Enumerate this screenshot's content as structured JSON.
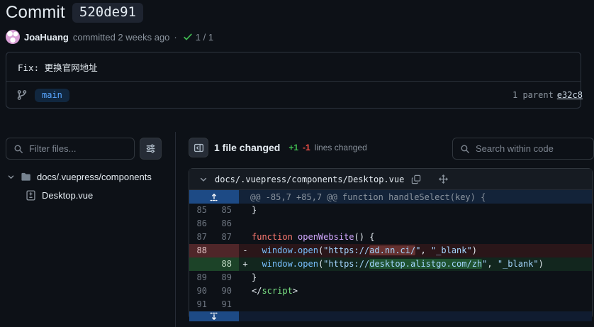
{
  "header": {
    "title": "Commit",
    "hash": "520de91",
    "author": "JoaHuang",
    "committed": "committed 2 weeks ago",
    "dot": "·",
    "checks": "1 / 1"
  },
  "commit": {
    "message": "Fix: 更换官网地址",
    "branch": "main",
    "parent_label": "1 parent",
    "parent_hash": "e32c8"
  },
  "sidebar": {
    "filter_placeholder": "Filter files...",
    "folder": "docs/.vuepress/components",
    "file": "Desktop.vue"
  },
  "toolbar": {
    "files_changed": "1 file changed",
    "additions": "+1",
    "deletions": "-1",
    "lines_label": "lines changed",
    "search_placeholder": "Search within code"
  },
  "diff": {
    "file_path": "docs/.vuepress/components/Desktop.vue",
    "hunk": "@@ -85,7 +85,7 @@ function handleSelect(key) {",
    "rows": [
      {
        "type": "context",
        "old": "85",
        "new": "85",
        "marker": "",
        "segments": [
          {
            "t": "}",
            "c": "plain"
          }
        ]
      },
      {
        "type": "context",
        "old": "86",
        "new": "86",
        "marker": "",
        "segments": []
      },
      {
        "type": "context",
        "old": "87",
        "new": "87",
        "marker": "",
        "segments": [
          {
            "t": "function",
            "c": "keyword"
          },
          {
            "t": " ",
            "c": "plain"
          },
          {
            "t": "openWebsite",
            "c": "func"
          },
          {
            "t": "() {",
            "c": "plain"
          }
        ]
      },
      {
        "type": "del",
        "old": "88",
        "new": "",
        "marker": "-",
        "segments": [
          {
            "t": "  ",
            "c": "plain"
          },
          {
            "t": "window.open",
            "c": "builtin"
          },
          {
            "t": "(",
            "c": "plain"
          },
          {
            "t": "\"https://",
            "c": "string"
          },
          {
            "t": "ad.nn.ci/",
            "c": "string",
            "hl": true
          },
          {
            "t": "\"",
            "c": "string"
          },
          {
            "t": ", ",
            "c": "plain"
          },
          {
            "t": "\"_blank\"",
            "c": "string"
          },
          {
            "t": ")",
            "c": "plain"
          }
        ]
      },
      {
        "type": "add",
        "old": "",
        "new": "88",
        "marker": "+",
        "segments": [
          {
            "t": "  ",
            "c": "plain"
          },
          {
            "t": "window.open",
            "c": "builtin"
          },
          {
            "t": "(",
            "c": "plain"
          },
          {
            "t": "\"https://",
            "c": "string"
          },
          {
            "t": "desktop.alistgo.com/zh",
            "c": "string",
            "hl": true
          },
          {
            "t": "\"",
            "c": "string"
          },
          {
            "t": ", ",
            "c": "plain"
          },
          {
            "t": "\"_blank\"",
            "c": "string"
          },
          {
            "t": ")",
            "c": "plain"
          }
        ]
      },
      {
        "type": "context",
        "old": "89",
        "new": "89",
        "marker": "",
        "segments": [
          {
            "t": "}",
            "c": "plain"
          }
        ]
      },
      {
        "type": "context",
        "old": "90",
        "new": "90",
        "marker": "",
        "segments": [
          {
            "t": "</",
            "c": "plain"
          },
          {
            "t": "script",
            "c": "tag"
          },
          {
            "t": ">",
            "c": "plain"
          }
        ]
      },
      {
        "type": "context",
        "old": "91",
        "new": "91",
        "marker": "",
        "segments": []
      }
    ]
  },
  "colors": {
    "background": "#0d1117",
    "addition_green": "#3fb950",
    "deletion_red": "#f85149",
    "branch_blue": "#58a6ff",
    "keyword_red": "#ff7b72",
    "function_purple": "#d2a8ff",
    "builtin_blue": "#79c0ff",
    "string_blue": "#a5d6ff",
    "tag_green": "#7ee787",
    "expand_gutter_blue": "#1d4a85"
  }
}
